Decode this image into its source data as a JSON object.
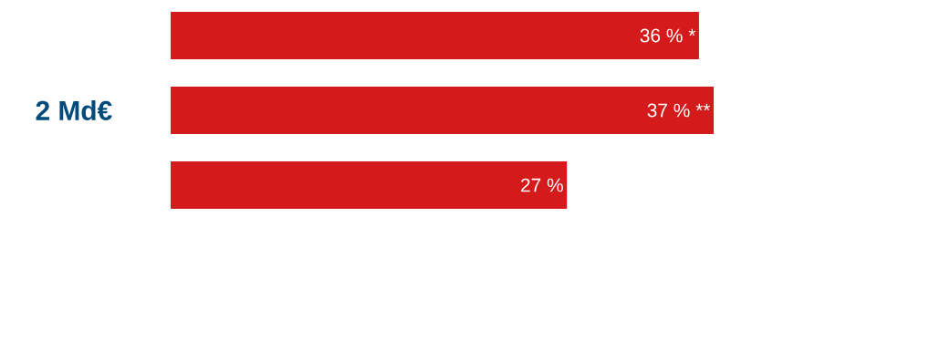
{
  "chart_data": {
    "type": "bar",
    "orientation": "horizontal",
    "categories": [
      null,
      null,
      null
    ],
    "values": [
      36,
      37,
      27
    ],
    "value_labels": [
      "36 % *",
      "37 % **",
      "27 %"
    ],
    "color": "#d41a1a",
    "annotations": [
      "2 Md€"
    ]
  }
}
